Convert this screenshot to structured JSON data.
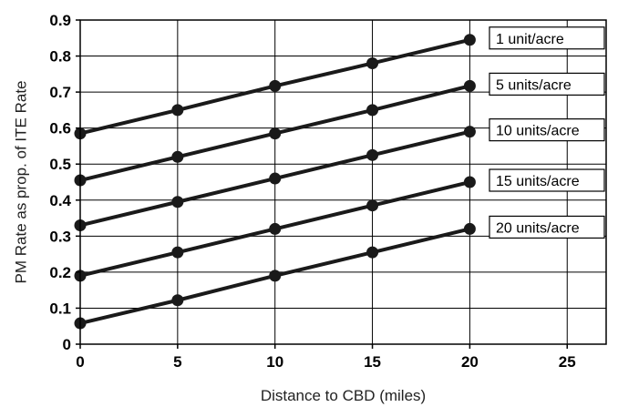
{
  "chart_data": {
    "type": "line",
    "xlabel": "Distance to CBD (miles)",
    "ylabel": "PM Rate as prop. of ITE Rate",
    "xlim": [
      0,
      27
    ],
    "ylim": [
      0,
      0.9
    ],
    "x_ticks": [
      0,
      5,
      10,
      15,
      20,
      25
    ],
    "x_tick_labels": [
      "0",
      "5",
      "10",
      "15",
      "20",
      "25"
    ],
    "y_ticks": [
      0,
      0.1,
      0.2,
      0.3,
      0.4,
      0.5,
      0.6,
      0.7,
      0.8,
      0.9
    ],
    "y_tick_labels": [
      "0",
      "0.1",
      "0.2",
      "0.3",
      "0.4",
      "0.5",
      "0.6",
      "0.7",
      "0.8",
      "0.9"
    ],
    "grid": true,
    "legend": "boxed labels at right end of each line",
    "x": [
      0,
      5,
      10,
      15,
      20
    ],
    "series": [
      {
        "name": "1 unit/acre",
        "values": [
          0.585,
          0.65,
          0.717,
          0.78,
          0.845
        ]
      },
      {
        "name": "5 units/acre",
        "values": [
          0.455,
          0.52,
          0.585,
          0.65,
          0.717
        ]
      },
      {
        "name": "10 units/acre",
        "values": [
          0.33,
          0.395,
          0.46,
          0.525,
          0.59
        ]
      },
      {
        "name": "15 units/acre",
        "values": [
          0.19,
          0.255,
          0.32,
          0.385,
          0.45
        ]
      },
      {
        "name": "20 units/acre",
        "values": [
          0.058,
          0.122,
          0.19,
          0.255,
          0.32
        ]
      }
    ],
    "line_color": "#1a1a1a"
  }
}
